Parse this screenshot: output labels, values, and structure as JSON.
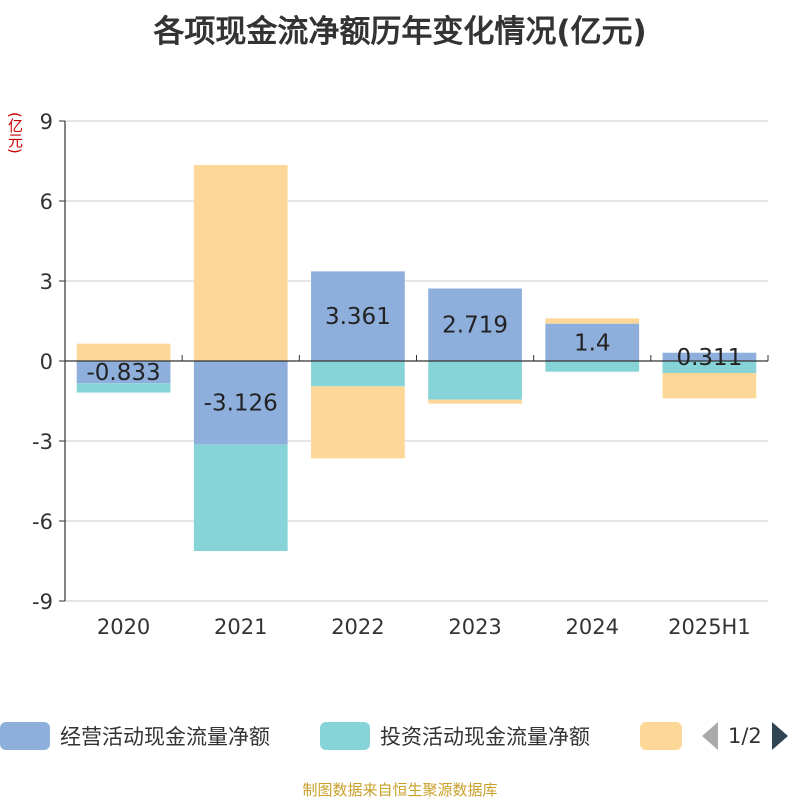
{
  "title": "各项现金流净额历年变化情况(亿元)",
  "unit_label": "(亿元)",
  "source_text": "制图数据来自恒生聚源数据库",
  "legend": {
    "items": [
      {
        "label": "经营活动现金流量净额",
        "color": "#8eaedc"
      },
      {
        "label": "投资活动现金流量净额",
        "color": "#86d4d7"
      },
      {
        "label": "",
        "color": "#fdd798"
      }
    ],
    "page_label": "1/2"
  },
  "chart_data": {
    "type": "bar",
    "stacked": true,
    "categories": [
      "2020",
      "2021",
      "2022",
      "2023",
      "2024",
      "2025H1"
    ],
    "series": [
      {
        "name": "经营活动现金流量净额",
        "color": "#8eaedc",
        "values": [
          -0.833,
          -3.126,
          3.361,
          2.719,
          1.4,
          0.311
        ],
        "labels": [
          "-0.833",
          "-3.126",
          "3.361",
          "2.719",
          "1.4",
          "0.311"
        ]
      },
      {
        "name": "投资活动现金流量净额",
        "color": "#86d4d7",
        "values": [
          -0.35,
          -4.0,
          -0.95,
          -1.45,
          -0.4,
          -0.45
        ]
      },
      {
        "color": "#fdd798",
        "values": [
          0.65,
          7.35,
          -2.7,
          -0.15,
          0.2,
          -0.95
        ]
      }
    ],
    "ylim": [
      -9,
      9
    ],
    "yticks": [
      9,
      6,
      3,
      0,
      -3,
      -6,
      -9
    ],
    "grid": true,
    "legend_position": "bottom"
  }
}
